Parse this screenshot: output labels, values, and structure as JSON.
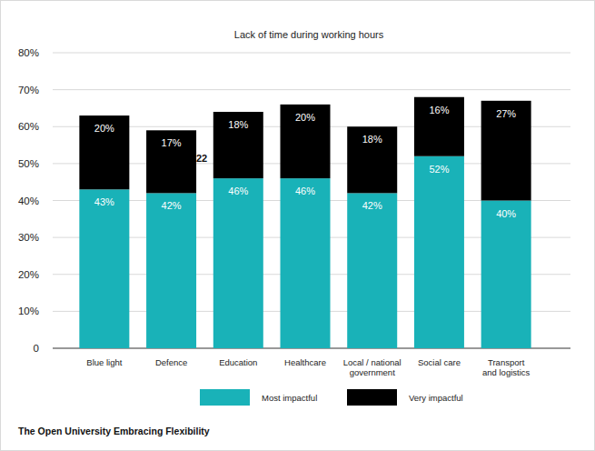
{
  "chart_data": {
    "type": "bar",
    "stacked": true,
    "title": "Lack of time during working hours",
    "categories": [
      "Blue light",
      "Defence",
      "Education",
      "Healthcare",
      "Local / national\ngovernment",
      "Social care",
      "Transport\nand logistics"
    ],
    "series": [
      {
        "name": "Most impactful",
        "color": "#19b2b8",
        "values": [
          43,
          42,
          46,
          46,
          42,
          52,
          40
        ],
        "value_labels": [
          "43%",
          "42%",
          "46%",
          "46%",
          "42%",
          "52%",
          "40%"
        ]
      },
      {
        "name": "Very impactful",
        "color": "#000000",
        "values": [
          20,
          17,
          18,
          20,
          18,
          16,
          27
        ],
        "value_labels": [
          "20%",
          "17%",
          "18%",
          "20%",
          "18%",
          "16%",
          "27%"
        ]
      }
    ],
    "ylim": [
      0,
      80
    ],
    "yticks": [
      0,
      {
        "value": 10,
        "label": "10%"
      },
      {
        "value": 20,
        "label": "20%"
      },
      {
        "value": 30,
        "label": "30%"
      },
      {
        "value": 40,
        "label": "40%"
      },
      {
        "value": 50,
        "label": "50%"
      },
      {
        "value": 60,
        "label": "60%"
      },
      {
        "value": 70,
        "label": "70%"
      },
      {
        "value": 80,
        "label": "80%"
      }
    ],
    "grid": true,
    "data_labels": true,
    "legend": "bottom",
    "annotations": [
      "22"
    ],
    "source": "The Open University Embracing Flexibility"
  }
}
